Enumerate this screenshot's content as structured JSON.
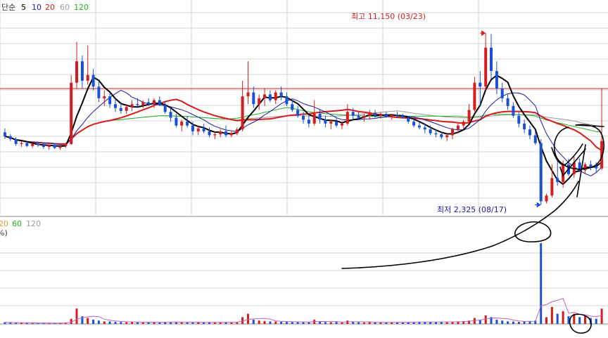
{
  "price_legend": {
    "prefix": "단순",
    "items": [
      {
        "label": "5",
        "color": "#000000"
      },
      {
        "label": "10",
        "color": "#1a1aa8"
      },
      {
        "label": "20",
        "color": "#d61c1c"
      },
      {
        "label": "60",
        "color": "#9a9a9a"
      },
      {
        "label": "120",
        "color": "#1eb51e"
      }
    ]
  },
  "volume_legend": {
    "items": [
      {
        "label": "20",
        "color": "#d4a12a"
      },
      {
        "label": "60",
        "color": "#1eb51e"
      },
      {
        "label": "120",
        "color": "#9a9a9a"
      }
    ],
    "unit": "%)"
  },
  "annotations": {
    "high": "최고 11,150 (03/23)",
    "low": "최저 2,325 (08/17)"
  },
  "colors": {
    "up": "#d61c1c",
    "down": "#1a50d8",
    "grid": "#d6d6d6",
    "ref_line": "#d61c1c",
    "pen": "#000000"
  },
  "chart_data": {
    "type": "candlestick",
    "price_range": [
      1800,
      12200
    ],
    "reference_price": 8300,
    "high": {
      "value": 11150,
      "date": "03/23"
    },
    "low": {
      "value": 2325,
      "date": "08/17"
    },
    "candles": [
      [
        6050,
        6250,
        5700,
        5850
      ],
      [
        5850,
        5950,
        5600,
        5700
      ],
      [
        5700,
        5800,
        5350,
        5450
      ],
      [
        5450,
        5600,
        5300,
        5500
      ],
      [
        5500,
        5600,
        5300,
        5350
      ],
      [
        5350,
        5500,
        5250,
        5450
      ],
      [
        5450,
        5550,
        5300,
        5400
      ],
      [
        5400,
        5500,
        5200,
        5300
      ],
      [
        5300,
        5450,
        5150,
        5400
      ],
      [
        5400,
        5500,
        5200,
        5250
      ],
      [
        5250,
        5400,
        5150,
        5350
      ],
      [
        5350,
        5500,
        5250,
        5450
      ],
      [
        5450,
        9000,
        5400,
        8600
      ],
      [
        8600,
        10700,
        8300,
        9700
      ],
      [
        9700,
        10000,
        8300,
        8700
      ],
      [
        8700,
        10500,
        8500,
        9000
      ],
      [
        9000,
        9300,
        8200,
        8400
      ],
      [
        8400,
        8700,
        7600,
        7800
      ],
      [
        7800,
        8200,
        7400,
        7900
      ],
      [
        7900,
        8100,
        7300,
        7500
      ],
      [
        7500,
        7800,
        7100,
        7300
      ],
      [
        7300,
        7600,
        7000,
        7150
      ],
      [
        7150,
        7500,
        7000,
        7350
      ],
      [
        7350,
        7700,
        7150,
        7500
      ],
      [
        7500,
        7800,
        7300,
        7450
      ],
      [
        7450,
        7700,
        7300,
        7600
      ],
      [
        7600,
        7800,
        7400,
        7500
      ],
      [
        7500,
        7800,
        7300,
        7700
      ],
      [
        7700,
        7900,
        7400,
        7450
      ],
      [
        7450,
        7600,
        7000,
        7100
      ],
      [
        7100,
        7300,
        6600,
        6800
      ],
      [
        6800,
        7000,
        6300,
        6400
      ],
      [
        6400,
        6700,
        6100,
        6600
      ],
      [
        6600,
        6900,
        6300,
        6400
      ],
      [
        6400,
        6600,
        5900,
        6100
      ],
      [
        6100,
        6400,
        5900,
        6250
      ],
      [
        6250,
        6500,
        6000,
        6100
      ],
      [
        6100,
        6300,
        5800,
        5900
      ],
      [
        5900,
        6100,
        5700,
        5950
      ],
      [
        5950,
        6200,
        5800,
        6100
      ],
      [
        6100,
        6400,
        5800,
        5900
      ],
      [
        5900,
        6100,
        5800,
        6000
      ],
      [
        6000,
        6300,
        5900,
        6200
      ],
      [
        6200,
        8700,
        6100,
        7900
      ],
      [
        7900,
        9700,
        7500,
        8100
      ],
      [
        8100,
        8400,
        7300,
        7500
      ],
      [
        7500,
        8000,
        7200,
        7800
      ],
      [
        7800,
        8300,
        7400,
        8000
      ],
      [
        8000,
        8200,
        7600,
        7700
      ],
      [
        7700,
        8200,
        7500,
        8100
      ],
      [
        8100,
        8400,
        7700,
        7900
      ],
      [
        7900,
        8100,
        7400,
        7500
      ],
      [
        7500,
        7700,
        7100,
        7200
      ],
      [
        7200,
        7400,
        6800,
        6900
      ],
      [
        6900,
        7100,
        6500,
        6700
      ],
      [
        6700,
        6900,
        6300,
        6500
      ],
      [
        6500,
        7700,
        6400,
        7000
      ],
      [
        7000,
        7200,
        6500,
        6700
      ],
      [
        6700,
        6900,
        6300,
        6500
      ],
      [
        6500,
        6700,
        6200,
        6600
      ],
      [
        6600,
        6800,
        6300,
        6400
      ],
      [
        6400,
        6600,
        6200,
        6500
      ],
      [
        6500,
        7500,
        6400,
        7100
      ],
      [
        7100,
        7300,
        6700,
        6900
      ],
      [
        6900,
        7100,
        6700,
        6800
      ],
      [
        6800,
        7000,
        6600,
        6900
      ],
      [
        6900,
        7200,
        6700,
        7050
      ],
      [
        7050,
        7200,
        6800,
        6900
      ],
      [
        6900,
        7100,
        6750,
        7000
      ],
      [
        7000,
        7100,
        6800,
        6850
      ],
      [
        6850,
        7000,
        6700,
        6950
      ],
      [
        6950,
        7100,
        6800,
        6900
      ],
      [
        6900,
        7000,
        6750,
        6800
      ],
      [
        6800,
        6900,
        6500,
        6600
      ],
      [
        6600,
        6750,
        6300,
        6400
      ],
      [
        6400,
        6600,
        6200,
        6300
      ],
      [
        6300,
        6500,
        6000,
        6200
      ],
      [
        6200,
        6400,
        5900,
        6000
      ],
      [
        6000,
        6200,
        5800,
        5950
      ],
      [
        5950,
        6100,
        5700,
        5800
      ],
      [
        5800,
        6000,
        5600,
        5900
      ],
      [
        5900,
        6300,
        5700,
        6200
      ],
      [
        6200,
        6500,
        6000,
        6400
      ],
      [
        6400,
        6700,
        6200,
        6600
      ],
      [
        6600,
        7500,
        6500,
        7200
      ],
      [
        7200,
        8900,
        7100,
        8600
      ],
      [
        8600,
        9200,
        7400,
        8400
      ],
      [
        8400,
        11150,
        8200,
        10400
      ],
      [
        10400,
        11100,
        8800,
        9200
      ],
      [
        9200,
        9700,
        8000,
        8300
      ],
      [
        8300,
        8600,
        7600,
        7800
      ],
      [
        7800,
        8000,
        7200,
        7400
      ],
      [
        7400,
        7600,
        6800,
        6900
      ],
      [
        6900,
        7100,
        6300,
        6500
      ],
      [
        6500,
        6700,
        6000,
        6200
      ],
      [
        6200,
        6400,
        5700,
        5900
      ],
      [
        5900,
        6100,
        5400,
        5500
      ],
      [
        5500,
        5700,
        2325,
        2500
      ],
      [
        2500,
        2900,
        2400,
        2800
      ],
      [
        2800,
        4400,
        2700,
        3700
      ],
      [
        3700,
        4700,
        3300,
        3500
      ],
      [
        3500,
        4600,
        3200,
        4400
      ],
      [
        4400,
        4700,
        3800,
        3900
      ],
      [
        3900,
        4800,
        3700,
        4500
      ],
      [
        4500,
        4700,
        4000,
        4100
      ],
      [
        4100,
        4500,
        3900,
        4400
      ],
      [
        4400,
        4600,
        4100,
        4300
      ],
      [
        4300,
        4500,
        4000,
        4200
      ],
      [
        4200,
        8300,
        4100,
        5600
      ]
    ],
    "volume_values": [
      2,
      1.5,
      1.2,
      1.3,
      1.1,
      1,
      1.2,
      1,
      1.1,
      1,
      1.2,
      1.4,
      6,
      18,
      9,
      7,
      5,
      4,
      3,
      3,
      2.5,
      2.2,
      2,
      2.5,
      2,
      1.8,
      2,
      2.2,
      2,
      2.3,
      2.1,
      2.5,
      2,
      1.8,
      2.2,
      1.9,
      2,
      2.1,
      1.8,
      2,
      2.2,
      2,
      2.3,
      8,
      12,
      5,
      4,
      3.5,
      3,
      2.8,
      2.5,
      2.4,
      2.3,
      2.2,
      2.5,
      2.1,
      5,
      2.5,
      2.2,
      2,
      2.3,
      1.9,
      4,
      2.5,
      2,
      1.8,
      2.2,
      2,
      1.9,
      1.8,
      2,
      2.1,
      2,
      2.3,
      2.2,
      2.5,
      2.4,
      2.3,
      2.2,
      2.5,
      2.4,
      2.6,
      3,
      3.2,
      4,
      7,
      5,
      10,
      8,
      5,
      4,
      3,
      2.8,
      2.5,
      3,
      3.5,
      4,
      95,
      8,
      20,
      12,
      15,
      9,
      12,
      8,
      10,
      7,
      6,
      18
    ],
    "volume_range": [
      0,
      100
    ]
  }
}
